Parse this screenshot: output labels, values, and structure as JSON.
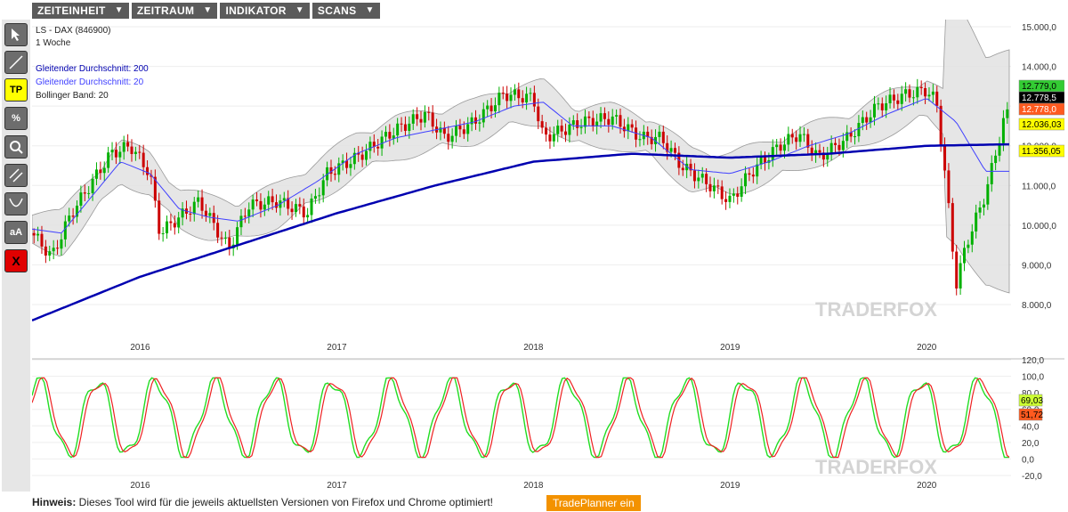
{
  "menu": [
    {
      "label": "ZEITEINHEIT",
      "arrow": "▼"
    },
    {
      "label": "ZEITRAUM",
      "arrow": "▼"
    },
    {
      "label": "INDIKATOR",
      "arrow": "▼"
    },
    {
      "label": "SCANS",
      "arrow": "▼"
    }
  ],
  "toolbar": {
    "tp_label": "TP",
    "percent_label": "%",
    "text_label": "aA",
    "delete_label": "X"
  },
  "chart": {
    "instrument": "LS - DAX (846900)",
    "timeframe": "1 Woche",
    "ma200_label": "Gleitender Durchschnitt: 200",
    "ma20_label": "Gleitender Durchschnitt: 20",
    "bb_label": "Bollinger Band: 20",
    "watermark": "TRADERFOX",
    "ma200_color": "#0000b0",
    "ma20_color": "#4040ff",
    "up_color": "#00b000",
    "down_color": "#cc0000"
  },
  "price_axis": {
    "ticks": [
      "15.000,0",
      "14.000,0",
      "13.000,0",
      "12.000,0",
      "11.000,0",
      "10.000,0",
      "9.000,0",
      "8.000,0"
    ],
    "badges": [
      {
        "text": "12.779,0",
        "bg": "#33cc33",
        "fg": "#000000"
      },
      {
        "text": "12.778,5",
        "bg": "#000000",
        "fg": "#ffffff"
      },
      {
        "text": "12.778,0",
        "bg": "#ff5a1f",
        "fg": "#ffffff"
      },
      {
        "text": "12.036,03",
        "bg": "#ffff00",
        "fg": "#000000"
      },
      {
        "text": "11.356,05",
        "bg": "#ffff00",
        "fg": "#000000"
      }
    ]
  },
  "x_axis": {
    "labels": [
      "2016",
      "2017",
      "2018",
      "2019",
      "2020"
    ]
  },
  "osc_axis": {
    "ticks": [
      "120,0",
      "100,0",
      "80,0",
      "60,0",
      "40,0",
      "20,0",
      "0,0",
      "-20,0"
    ],
    "badges": [
      {
        "text": "69,03",
        "bg": "#ccff33",
        "fg": "#000000"
      },
      {
        "text": "51,72",
        "bg": "#ff5a1f",
        "fg": "#000000"
      }
    ]
  },
  "footer": {
    "hint_bold": "Hinweis:",
    "hint_text": " Dieses Tool wird für die jeweils aktuellsten Versionen von Firefox und Chrome optimiert!",
    "button": "TradePlanner ein"
  },
  "chart_data": {
    "type": "line",
    "title": "LS - DAX (846900)",
    "ylim": [
      7600,
      15300
    ],
    "x_labels": [
      "2016",
      "2017",
      "2018",
      "2019",
      "2020"
    ],
    "series": [
      {
        "name": "LS - DAX (846900)",
        "values": [
          [
            2015.45,
            9800
          ],
          [
            2015.55,
            9200
          ],
          [
            2015.65,
            10300
          ],
          [
            2015.85,
            11800
          ],
          [
            2015.95,
            12000
          ],
          [
            2016.05,
            11300
          ],
          [
            2016.1,
            9800
          ],
          [
            2016.2,
            10200
          ],
          [
            2016.3,
            10600
          ],
          [
            2016.45,
            9400
          ],
          [
            2016.55,
            10500
          ],
          [
            2016.7,
            10600
          ],
          [
            2016.85,
            10300
          ],
          [
            2016.95,
            11300
          ],
          [
            2017.1,
            11700
          ],
          [
            2017.3,
            12400
          ],
          [
            2017.45,
            12800
          ],
          [
            2017.55,
            12200
          ],
          [
            2017.7,
            12600
          ],
          [
            2017.85,
            13300
          ],
          [
            2018.0,
            13200
          ],
          [
            2018.05,
            12200
          ],
          [
            2018.15,
            12400
          ],
          [
            2018.25,
            12600
          ],
          [
            2018.4,
            12700
          ],
          [
            2018.55,
            12200
          ],
          [
            2018.65,
            12200
          ],
          [
            2018.75,
            11500
          ],
          [
            2018.9,
            11000
          ],
          [
            2019.0,
            10600
          ],
          [
            2019.1,
            11300
          ],
          [
            2019.25,
            12000
          ],
          [
            2019.35,
            12300
          ],
          [
            2019.45,
            11700
          ],
          [
            2019.6,
            12200
          ],
          [
            2019.75,
            13000
          ],
          [
            2019.9,
            13300
          ],
          [
            2020.0,
            13400
          ],
          [
            2020.05,
            13100
          ],
          [
            2020.1,
            11000
          ],
          [
            2020.15,
            8500
          ],
          [
            2020.2,
            9500
          ],
          [
            2020.3,
            10800
          ],
          [
            2020.4,
            12800
          ]
        ]
      },
      {
        "name": "Gleitender Durchschnitt: 200",
        "values": [
          [
            2015.45,
            7600
          ],
          [
            2016.0,
            8700
          ],
          [
            2016.5,
            9500
          ],
          [
            2017.0,
            10300
          ],
          [
            2017.5,
            11000
          ],
          [
            2018.0,
            11600
          ],
          [
            2018.5,
            11800
          ],
          [
            2019.0,
            11700
          ],
          [
            2019.5,
            11800
          ],
          [
            2020.0,
            12000
          ],
          [
            2020.4,
            12036
          ]
        ]
      },
      {
        "name": "Gleitender Durchschnitt: 20",
        "values": [
          [
            2015.45,
            9900
          ],
          [
            2015.6,
            9800
          ],
          [
            2015.75,
            10700
          ],
          [
            2015.9,
            11600
          ],
          [
            2016.05,
            11300
          ],
          [
            2016.2,
            10400
          ],
          [
            2016.35,
            10200
          ],
          [
            2016.5,
            10100
          ],
          [
            2016.7,
            10500
          ],
          [
            2016.9,
            11100
          ],
          [
            2017.1,
            11800
          ],
          [
            2017.3,
            12200
          ],
          [
            2017.5,
            12400
          ],
          [
            2017.7,
            12600
          ],
          [
            2017.9,
            13000
          ],
          [
            2018.05,
            13100
          ],
          [
            2018.2,
            12500
          ],
          [
            2018.4,
            12500
          ],
          [
            2018.6,
            12200
          ],
          [
            2018.8,
            11400
          ],
          [
            2019.0,
            11300
          ],
          [
            2019.2,
            11600
          ],
          [
            2019.4,
            12000
          ],
          [
            2019.6,
            12300
          ],
          [
            2019.8,
            12800
          ],
          [
            2020.0,
            13200
          ],
          [
            2020.15,
            12600
          ],
          [
            2020.3,
            11356
          ]
        ]
      }
    ]
  }
}
